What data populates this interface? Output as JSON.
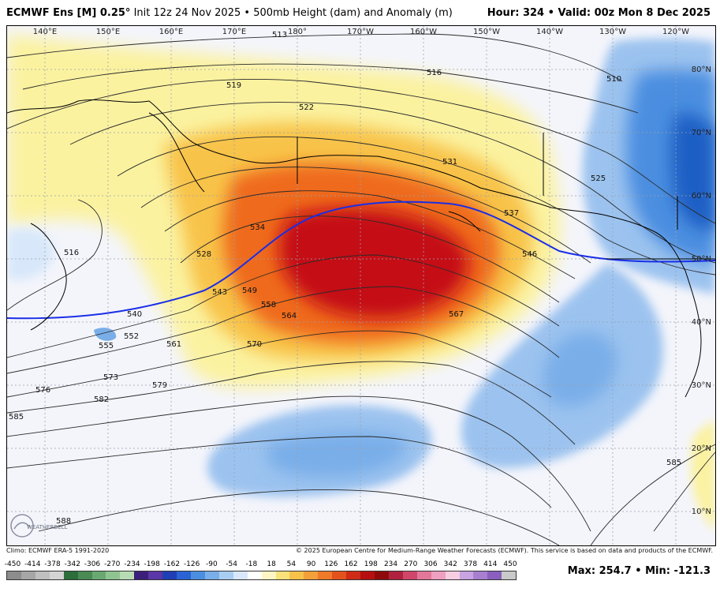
{
  "header": {
    "model": "ECMWF Ens [M] 0.25°",
    "init": "Init 12z 24 Nov 2025",
    "bullet": "•",
    "product": "500mb Height (dam) and Anomaly (m)",
    "hour_label": "Hour:",
    "hour_value": "324",
    "valid_label": "Valid:",
    "valid_value": "00z Mon 8 Dec 2025"
  },
  "map": {
    "longitude_labels": [
      "140°E",
      "150°E",
      "160°E",
      "170°E",
      "180°",
      "170°W",
      "160°W",
      "150°W",
      "140°W",
      "130°W",
      "120°W"
    ],
    "latitude_labels": [
      "80°N",
      "70°N",
      "60°N",
      "50°N",
      "40°N",
      "30°N",
      "20°N",
      "10°N"
    ],
    "contour_labels": [
      "513",
      "516",
      "519",
      "522",
      "510",
      "525",
      "531",
      "537",
      "534",
      "528",
      "546",
      "543",
      "549",
      "516",
      "540",
      "552",
      "558",
      "564",
      "567",
      "555",
      "561",
      "570",
      "573",
      "576",
      "579",
      "582",
      "585",
      "585",
      "588"
    ],
    "highlight_contour": "540 dam",
    "colors": {
      "ridge_core": "#c50f12",
      "ridge_mid": "#ef6a1c",
      "ridge_outer": "#f8c34a",
      "ridge_edge": "#fbf2a0",
      "trough_core": "#1f5fc4",
      "trough_mid": "#4b8ee0",
      "trough_outer": "#9cc3ef",
      "background": "#f4f5fb",
      "contour": "#2a2a2a",
      "contour_540": "#1a2ee6"
    }
  },
  "credits": {
    "climo": "Climo: ECMWF ERA-5 1991-2020",
    "copyright": "© 2025 European Centre for Medium-Range Weather Forecasts (ECMWF). This service is based on data and products of the ECMWF.",
    "logo_text": "WEATHERBELL"
  },
  "colorbar": {
    "ticks": [
      "-450",
      "-414",
      "-378",
      "-342",
      "-306",
      "-270",
      "-234",
      "-198",
      "-162",
      "-126",
      "-90",
      "-54",
      "-18",
      "18",
      "54",
      "90",
      "126",
      "162",
      "198",
      "234",
      "270",
      "306",
      "342",
      "378",
      "414",
      "450"
    ],
    "colors": [
      "#8c8c8c",
      "#a6a6a6",
      "#bfbfbf",
      "#d4d4d4",
      "#2c6e3c",
      "#4a8a55",
      "#6aa871",
      "#8fc492",
      "#b7dcb4",
      "#3b1f7a",
      "#5a36a6",
      "#1f3fb5",
      "#2c63d4",
      "#4b8ee0",
      "#79aee9",
      "#a9cdf2",
      "#d8e8fa",
      "#ffffff",
      "#fdf6c3",
      "#f9e27a",
      "#f7c24a",
      "#f3a03a",
      "#ee7a2a",
      "#e4521c",
      "#cf2a16",
      "#b5100f",
      "#8e0a0a",
      "#b0213f",
      "#d0466a",
      "#e2779a",
      "#ef9fc0",
      "#f7cde0",
      "#c7a3e2",
      "#a87fd0",
      "#8a5fbe",
      "#c9c9c9"
    ]
  },
  "stats": {
    "max_label": "Max:",
    "max_value": "254.7",
    "separator": "•",
    "min_label": "Min:",
    "min_value": "-121.3"
  }
}
